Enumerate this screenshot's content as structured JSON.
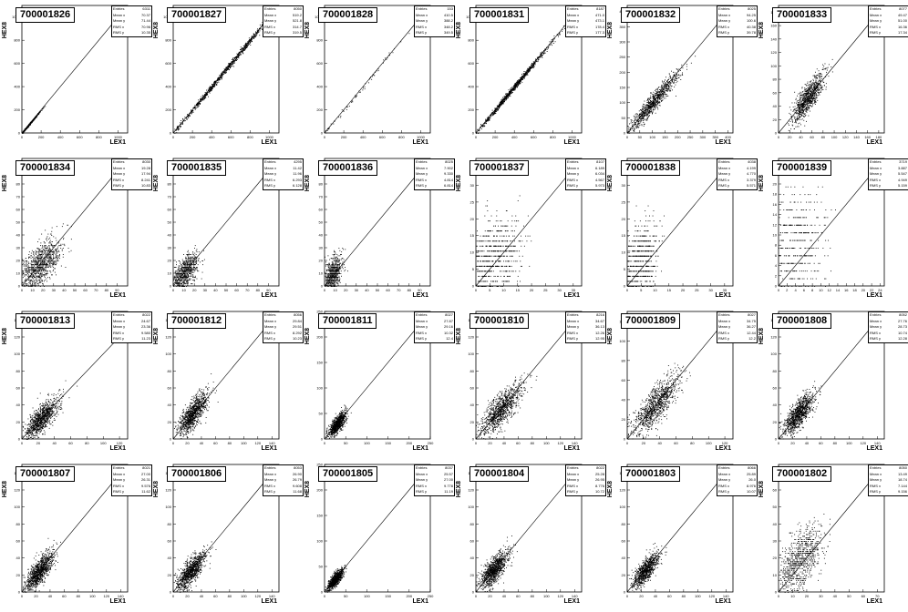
{
  "xlabel": "LEX1",
  "ylabel": "HEX8",
  "stats_labels": [
    "Entries",
    "Mean x",
    "Mean y",
    "RMS x",
    "RMS y"
  ],
  "chart_data": [
    {
      "type": "scatter",
      "title": "700001826",
      "x_ticks": [
        0,
        200,
        400,
        600,
        800,
        1000
      ],
      "y_ticks": [
        0,
        200,
        400,
        600,
        800,
        1000
      ],
      "xlim": [
        0,
        1100
      ],
      "ylim": [
        0,
        1100
      ],
      "cloud": {
        "cx": 60,
        "cy": 60,
        "sx": 60,
        "sy": 60,
        "rho": 0.998,
        "n": 500
      },
      "line": [
        0,
        0,
        1100,
        1100
      ],
      "stats": [
        "6311",
        "70.37",
        "71.44",
        "70.96",
        "10.35"
      ]
    },
    {
      "type": "scatter",
      "title": "700001827",
      "x_ticks": [
        0,
        200,
        400,
        600,
        800,
        1000
      ],
      "y_ticks": [
        0,
        200,
        400,
        600,
        800,
        1000
      ],
      "xlim": [
        0,
        1100
      ],
      "ylim": [
        0,
        1100
      ],
      "cloud": {
        "cx": 520,
        "cy": 520,
        "sx": 300,
        "sy": 300,
        "rho": 0.999,
        "n": 900
      },
      "line": [
        0,
        0,
        1100,
        1100
      ],
      "stats": [
        "8050",
        "519.2",
        "521.8",
        "314.7",
        "319.5"
      ]
    },
    {
      "type": "scatter",
      "title": "700001828",
      "x_ticks": [
        0,
        200,
        400,
        600,
        800,
        1000
      ],
      "y_ticks": [
        0,
        200,
        400,
        600,
        800,
        1000
      ],
      "xlim": [
        0,
        1100
      ],
      "ylim": [
        0,
        1100
      ],
      "cloud": {
        "cx": 350,
        "cy": 350,
        "sx": 280,
        "sy": 280,
        "rho": 0.999,
        "n": 80
      },
      "line": [
        0,
        0,
        1100,
        1100
      ],
      "stats": [
        "153",
        "410.5",
        "388.2",
        "348.2",
        "349.5"
      ]
    },
    {
      "type": "scatter",
      "title": "700001831",
      "x_ticks": [
        0,
        200,
        400,
        600,
        800,
        1000
      ],
      "y_ticks": [
        0,
        200,
        400,
        600,
        800,
        1000
      ],
      "xlim": [
        0,
        1100
      ],
      "ylim": [
        0,
        1100
      ],
      "cloud": {
        "cx": 380,
        "cy": 380,
        "sx": 210,
        "sy": 210,
        "rho": 0.998,
        "n": 900
      },
      "line": [
        0,
        0,
        1100,
        1100
      ],
      "stats": [
        "8187",
        "471.0",
        "473.1",
        "178.4",
        "177.3"
      ]
    },
    {
      "type": "scatter",
      "title": "700001832",
      "x_ticks": [
        0,
        50,
        100,
        150,
        200,
        250,
        300,
        350,
        400
      ],
      "y_ticks": [
        0,
        50,
        100,
        150,
        200,
        250,
        300,
        350,
        400
      ],
      "xlim": [
        0,
        420
      ],
      "ylim": [
        0,
        420
      ],
      "cloud": {
        "cx": 100,
        "cy": 100,
        "sx": 50,
        "sy": 50,
        "rho": 0.95,
        "n": 900
      },
      "line": [
        0,
        0,
        420,
        420
      ],
      "stats": [
        "8025",
        "94.25",
        "100.6",
        "40.38",
        "39.78"
      ]
    },
    {
      "type": "scatter",
      "title": "700001833",
      "x_ticks": [
        0,
        20,
        40,
        60,
        80,
        100,
        120,
        140,
        160,
        180
      ],
      "y_ticks": [
        0,
        20,
        40,
        60,
        80,
        100,
        120,
        140,
        160,
        180
      ],
      "xlim": [
        0,
        190
      ],
      "ylim": [
        0,
        190
      ],
      "cloud": {
        "cx": 52,
        "cy": 52,
        "sx": 14,
        "sy": 18,
        "rho": 0.8,
        "n": 900
      },
      "line": [
        0,
        0,
        190,
        190
      ],
      "stats": [
        "8077",
        "49.47",
        "51.00",
        "16.36",
        "17.34"
      ]
    },
    {
      "type": "scatter",
      "title": "700001834",
      "x_ticks": [
        0,
        10,
        20,
        30,
        40,
        50,
        60,
        70,
        80,
        90
      ],
      "y_ticks": [
        0,
        10,
        20,
        30,
        40,
        50,
        60,
        70,
        80,
        90
      ],
      "xlim": [
        0,
        100
      ],
      "ylim": [
        0,
        100
      ],
      "cloud": {
        "cx": 17,
        "cy": 17,
        "sx": 10,
        "sy": 10,
        "rho": 0.65,
        "n": 1000,
        "ystep": 1
      },
      "line": [
        0,
        0,
        100,
        100
      ],
      "stats": [
        "8030",
        "19.28",
        "17.94",
        "8.241",
        "10.83"
      ]
    },
    {
      "type": "scatter",
      "title": "700001835",
      "x_ticks": [
        0,
        10,
        20,
        30,
        40,
        50,
        60,
        70,
        80,
        90
      ],
      "y_ticks": [
        0,
        10,
        20,
        30,
        40,
        50,
        60,
        70,
        80,
        90
      ],
      "xlim": [
        0,
        100
      ],
      "ylim": [
        0,
        100
      ],
      "cloud": {
        "cx": 11,
        "cy": 11,
        "sx": 6,
        "sy": 7,
        "rho": 0.55,
        "n": 800,
        "ystep": 1
      },
      "line": [
        0,
        0,
        100,
        100
      ],
      "stats": [
        "4295",
        "11.42",
        "11.96",
        "6.293",
        "6.128"
      ]
    },
    {
      "type": "scatter",
      "title": "700001836",
      "x_ticks": [
        0,
        10,
        20,
        30,
        40,
        50,
        60,
        70,
        80,
        90
      ],
      "y_ticks": [
        0,
        10,
        20,
        30,
        40,
        50,
        60,
        70,
        80,
        90
      ],
      "xlim": [
        0,
        100
      ],
      "ylim": [
        0,
        100
      ],
      "cloud": {
        "cx": 8,
        "cy": 10,
        "sx": 4,
        "sy": 7,
        "rho": 0.45,
        "n": 700,
        "ystep": 1
      },
      "line": [
        0,
        0,
        100,
        100
      ],
      "stats": [
        "8025",
        "7.902",
        "9.330",
        "4.814",
        "6.814"
      ]
    },
    {
      "type": "scatter",
      "title": "700001837",
      "x_ticks": [
        0,
        5,
        10,
        15,
        20,
        25,
        30,
        35
      ],
      "y_ticks": [
        0,
        5,
        10,
        15,
        20,
        25,
        30,
        35
      ],
      "xlim": [
        0,
        38
      ],
      "ylim": [
        0,
        38
      ],
      "cloud": {
        "cx": 6,
        "cy": 8,
        "sx": 5,
        "sy": 6,
        "rho": 0.3,
        "n": 700,
        "ystep": 1.5
      },
      "line": [
        0,
        0,
        38,
        38
      ],
      "stats": [
        "8107",
        "6.189",
        "6.034",
        "4.567",
        "5.973"
      ]
    },
    {
      "type": "scatter",
      "title": "700001838",
      "x_ticks": [
        0,
        5,
        10,
        15,
        20,
        25,
        30,
        35
      ],
      "y_ticks": [
        0,
        5,
        10,
        15,
        20,
        25,
        30,
        35
      ],
      "xlim": [
        0,
        38
      ],
      "ylim": [
        0,
        38
      ],
      "cloud": {
        "cx": 4,
        "cy": 7,
        "sx": 3.5,
        "sy": 6,
        "rho": 0.3,
        "n": 650,
        "ystep": 1.5
      },
      "line": [
        0,
        0,
        38,
        38
      ],
      "stats": [
        "4038",
        "4.199",
        "4.770",
        "3.379",
        "5.571"
      ]
    },
    {
      "type": "scatter",
      "title": "700001839",
      "x_ticks": [
        0,
        2,
        4,
        6,
        8,
        10,
        12,
        14,
        16,
        18,
        20,
        22,
        24
      ],
      "y_ticks": [
        0,
        2,
        4,
        6,
        8,
        10,
        12,
        14,
        16,
        18,
        20,
        22,
        24
      ],
      "xlim": [
        0,
        25
      ],
      "ylim": [
        0,
        25
      ],
      "cloud": {
        "cx": 4,
        "cy": 8,
        "sx": 3.5,
        "sy": 6,
        "rho": 0.2,
        "n": 450,
        "ystep": 1.5
      },
      "line": [
        0,
        0,
        25,
        25
      ],
      "stats": [
        "3719",
        "3.887",
        "5.547",
        "4.949",
        "5.159"
      ]
    },
    {
      "type": "scatter",
      "title": "700001813",
      "x_ticks": [
        0,
        20,
        40,
        60,
        80,
        100,
        120
      ],
      "y_ticks": [
        0,
        20,
        40,
        60,
        80,
        100,
        120,
        140
      ],
      "xlim": [
        0,
        130
      ],
      "ylim": [
        0,
        150
      ],
      "cloud": {
        "cx": 24,
        "cy": 24,
        "sx": 10,
        "sy": 12,
        "rho": 0.75,
        "n": 1000
      },
      "line": [
        0,
        0,
        130,
        130
      ],
      "stats": [
        "8022",
        "24.67",
        "23.36",
        "9.580",
        "11.23"
      ]
    },
    {
      "type": "scatter",
      "title": "700001812",
      "x_ticks": [
        0,
        20,
        40,
        60,
        80,
        100,
        120,
        140
      ],
      "y_ticks": [
        0,
        20,
        40,
        60,
        80,
        100,
        120,
        140
      ],
      "xlim": [
        0,
        150
      ],
      "ylim": [
        0,
        150
      ],
      "cloud": {
        "cx": 28,
        "cy": 30,
        "sx": 10,
        "sy": 12,
        "rho": 0.75,
        "n": 1000
      },
      "line": [
        0,
        0,
        150,
        150
      ],
      "stats": [
        "8056",
        "29.84",
        "29.51",
        "8.292",
        "10.23"
      ]
    },
    {
      "type": "scatter",
      "title": "700001811",
      "x_ticks": [
        0,
        50,
        100,
        150,
        200,
        250
      ],
      "y_ticks": [
        0,
        50,
        100,
        150,
        200,
        250
      ],
      "xlim": [
        0,
        250
      ],
      "ylim": [
        0,
        250
      ],
      "cloud": {
        "cx": 30,
        "cy": 30,
        "sx": 10,
        "sy": 12,
        "rho": 0.75,
        "n": 900
      },
      "line": [
        0,
        0,
        250,
        250
      ],
      "stats": [
        "8027",
        "27.87",
        "29.16",
        "10.32",
        "12.4"
      ]
    },
    {
      "type": "scatter",
      "title": "700001810",
      "x_ticks": [
        0,
        20,
        40,
        60,
        80,
        100,
        120,
        140
      ],
      "y_ticks": [
        0,
        20,
        40,
        60,
        80,
        100,
        120,
        140
      ],
      "xlim": [
        0,
        150
      ],
      "ylim": [
        0,
        150
      ],
      "cloud": {
        "cx": 35,
        "cy": 35,
        "sx": 15,
        "sy": 15,
        "rho": 0.8,
        "n": 1000
      },
      "line": [
        0,
        0,
        150,
        150
      ],
      "stats": [
        "8216",
        "34.67",
        "36.13",
        "12.26",
        "12.95"
      ]
    },
    {
      "type": "scatter",
      "title": "700001809",
      "x_ticks": [
        0,
        20,
        40,
        60,
        80,
        100,
        120
      ],
      "y_ticks": [
        0,
        20,
        40,
        60,
        80,
        100,
        120
      ],
      "xlim": [
        0,
        130
      ],
      "ylim": [
        0,
        130
      ],
      "cloud": {
        "cx": 35,
        "cy": 35,
        "sx": 14,
        "sy": 15,
        "rho": 0.8,
        "n": 1000
      },
      "line": [
        0,
        0,
        130,
        130
      ],
      "stats": [
        "8027",
        "34.75",
        "36.27",
        "12.44",
        "12.2"
      ]
    },
    {
      "type": "scatter",
      "title": "700001808",
      "x_ticks": [
        0,
        20,
        40,
        60,
        80,
        100,
        120,
        140
      ],
      "y_ticks": [
        0,
        20,
        40,
        60,
        80,
        100,
        120,
        140
      ],
      "xlim": [
        0,
        150
      ],
      "ylim": [
        0,
        150
      ],
      "cloud": {
        "cx": 28,
        "cy": 30,
        "sx": 10,
        "sy": 12,
        "rho": 0.75,
        "n": 1000
      },
      "line": [
        0,
        0,
        150,
        150
      ],
      "stats": [
        "8052",
        "27.76",
        "28.73",
        "10.74",
        "12.28"
      ]
    },
    {
      "type": "scatter",
      "title": "700001807",
      "x_ticks": [
        0,
        20,
        40,
        60,
        80,
        100,
        120,
        140
      ],
      "y_ticks": [
        0,
        20,
        40,
        60,
        80,
        100,
        120,
        140
      ],
      "xlim": [
        0,
        150
      ],
      "ylim": [
        0,
        150
      ],
      "cloud": {
        "cx": 25,
        "cy": 25,
        "sx": 10,
        "sy": 11,
        "rho": 0.75,
        "n": 1000
      },
      "line": [
        0,
        0,
        150,
        150
      ],
      "stats": [
        "8021",
        "27.00",
        "26.31",
        "9.576",
        "11.62"
      ]
    },
    {
      "type": "scatter",
      "title": "700001806",
      "x_ticks": [
        0,
        20,
        40,
        60,
        80,
        100,
        120,
        140
      ],
      "y_ticks": [
        0,
        20,
        40,
        60,
        80,
        100,
        120,
        140
      ],
      "xlim": [
        0,
        150
      ],
      "ylim": [
        0,
        150
      ],
      "cloud": {
        "cx": 25,
        "cy": 25,
        "sx": 10,
        "sy": 11,
        "rho": 0.75,
        "n": 1000
      },
      "line": [
        0,
        0,
        150,
        150
      ],
      "stats": [
        "8053",
        "26.90",
        "26.79",
        "9.608",
        "11.68"
      ]
    },
    {
      "type": "scatter",
      "title": "700001805",
      "x_ticks": [
        0,
        50,
        100,
        150,
        200,
        250
      ],
      "y_ticks": [
        0,
        50,
        100,
        150,
        200,
        250
      ],
      "xlim": [
        0,
        250
      ],
      "ylim": [
        0,
        250
      ],
      "cloud": {
        "cx": 25,
        "cy": 25,
        "sx": 9,
        "sy": 10,
        "rho": 0.8,
        "n": 900
      },
      "line": [
        0,
        0,
        250,
        250
      ],
      "stats": [
        "8037",
        "25.57",
        "27.00",
        "9.778",
        "11.19"
      ]
    },
    {
      "type": "scatter",
      "title": "700001804",
      "x_ticks": [
        0,
        20,
        40,
        60,
        80,
        100,
        120,
        140
      ],
      "y_ticks": [
        0,
        20,
        40,
        60,
        80,
        100,
        120,
        140
      ],
      "xlim": [
        0,
        150
      ],
      "ylim": [
        0,
        150
      ],
      "cloud": {
        "cx": 25,
        "cy": 26,
        "sx": 10,
        "sy": 11,
        "rho": 0.75,
        "n": 1000
      },
      "line": [
        0,
        0,
        150,
        150
      ],
      "stats": [
        "8022",
        "25.28",
        "26.95",
        "8.776",
        "10.72"
      ]
    },
    {
      "type": "scatter",
      "title": "700001803",
      "x_ticks": [
        0,
        20,
        40,
        60,
        80,
        100,
        120,
        140
      ],
      "y_ticks": [
        0,
        20,
        40,
        60,
        80,
        100,
        120,
        140
      ],
      "xlim": [
        0,
        150
      ],
      "ylim": [
        0,
        150
      ],
      "cloud": {
        "cx": 25,
        "cy": 25,
        "sx": 9,
        "sy": 10,
        "rho": 0.75,
        "n": 900
      },
      "line": [
        0,
        0,
        150,
        150
      ],
      "stats": [
        "8066",
        "25.89",
        "26.0",
        "8.976",
        "10.07"
      ]
    },
    {
      "type": "scatter",
      "title": "700001802",
      "x_ticks": [
        0,
        10,
        20,
        30,
        40,
        50,
        60,
        70
      ],
      "y_ticks": [
        0,
        10,
        20,
        30,
        40,
        50,
        60,
        70
      ],
      "xlim": [
        0,
        75
      ],
      "ylim": [
        0,
        75
      ],
      "cloud": {
        "cx": 14,
        "cy": 18,
        "sx": 8,
        "sy": 10,
        "rho": 0.6,
        "n": 900,
        "ystep": 1
      },
      "line": [
        0,
        0,
        75,
        75
      ],
      "stats": [
        "8050",
        "13.49",
        "18.74",
        "7.144",
        "9.156"
      ]
    }
  ]
}
